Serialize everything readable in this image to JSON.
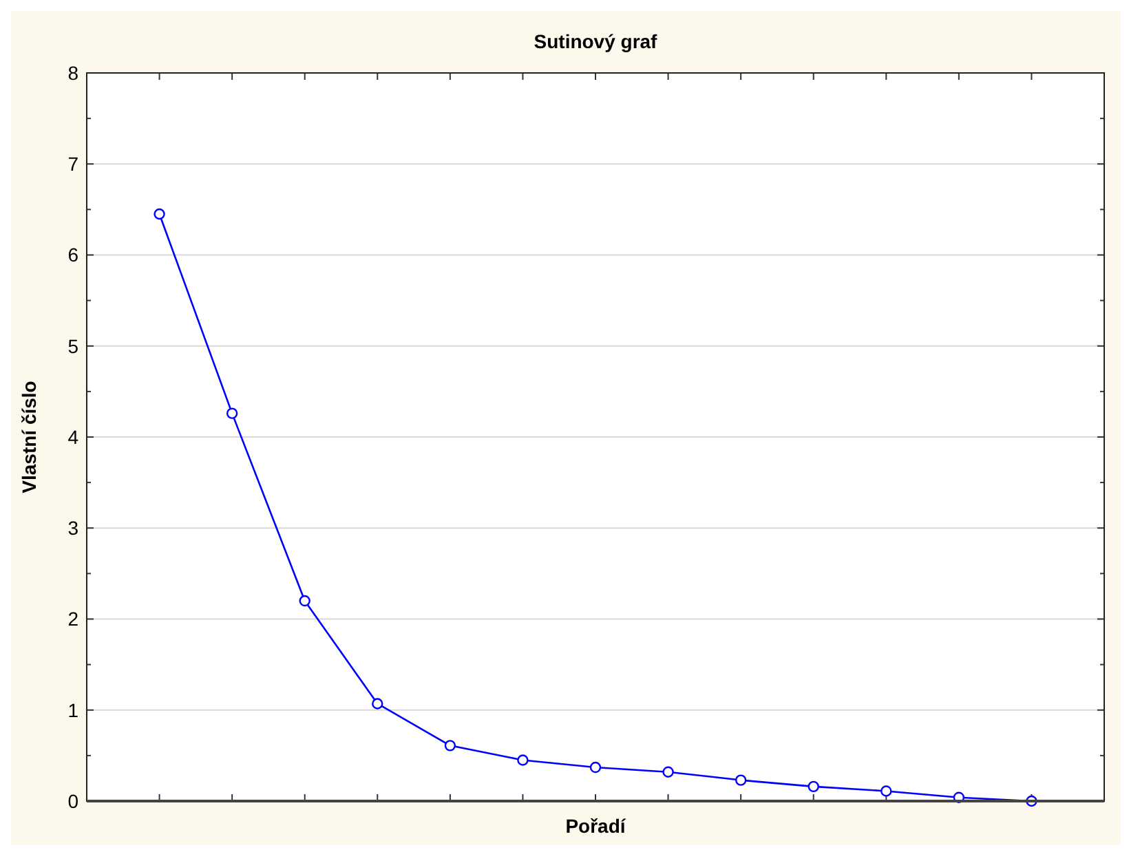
{
  "chart_data": {
    "type": "line",
    "title": "Sutinový graf",
    "xlabel": "Pořadí",
    "ylabel": "Vlastní číslo",
    "categories": [
      null,
      null,
      null,
      null,
      null,
      null,
      null,
      null,
      null,
      null,
      null,
      null,
      null
    ],
    "series": [
      {
        "color": "#0000ff",
        "values": [
          6.45,
          4.26,
          2.2,
          1.07,
          0.61,
          0.45,
          0.37,
          0.32,
          0.23,
          0.16,
          0.11,
          0.04,
          0.0
        ]
      }
    ],
    "ylim": [
      0,
      8
    ],
    "yticks": [
      0,
      1,
      2,
      3,
      4,
      5,
      6,
      7,
      8
    ],
    "grid": "y",
    "marker": "circle",
    "line_style": "solid"
  }
}
